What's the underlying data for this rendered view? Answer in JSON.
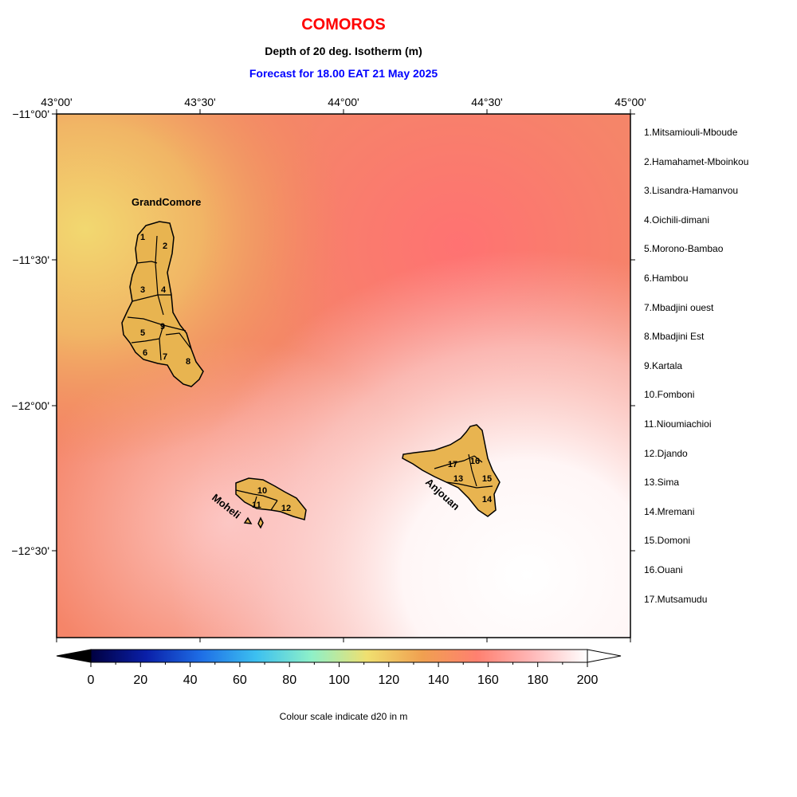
{
  "header": {
    "title": "COMOROS",
    "subtitle": "Depth of 20 deg. Isotherm (m)",
    "forecast": "Forecast for  18.00 EAT 21 May 2025"
  },
  "colors": {
    "title": "#ff0000",
    "forecast": "#0000ff",
    "land": "#e8b450",
    "coast": "#000000"
  },
  "map": {
    "lon_labels": [
      "43°00'",
      "43°30'",
      "44°00'",
      "44°30'",
      "45°00'"
    ],
    "lat_labels": [
      "−11°00'",
      "−11°30'",
      "−12°00'",
      "−12°30'"
    ],
    "islands": [
      "GrandComore",
      "Moheli",
      "Anjouan"
    ]
  },
  "districts": [
    "1.Mitsamiouli-Mboude",
    "2.Hamahamet-Mboinkou",
    "3.Lisandra-Hamanvou",
    "4.Oichili-dimani",
    "5.Morono-Bambao",
    "6.Hambou",
    "7.Mbadjini ouest",
    "8.Mbadjini Est",
    "9.Kartala",
    "10.Fomboni",
    "11.Nioumiachioi",
    "12.Djando",
    "13.Sima",
    "14.Mremani",
    "15.Domoni",
    "16.Ouani",
    "17.Mutsamudu"
  ],
  "district_numbers": [
    "1",
    "2",
    "3",
    "4",
    "5",
    "6",
    "7",
    "8",
    "9",
    "10",
    "11",
    "12",
    "13",
    "14",
    "15",
    "16",
    "17"
  ],
  "colorbar": {
    "ticks": [
      "0",
      "20",
      "40",
      "60",
      "80",
      "100",
      "120",
      "140",
      "160",
      "180",
      "200"
    ],
    "stops": [
      "#000040",
      "#0a1fa8",
      "#1e6ee6",
      "#3cc0f0",
      "#8ef0c8",
      "#f0e070",
      "#f0a050",
      "#ff8070",
      "#ffb8b8",
      "#ffffff"
    ],
    "caption": "Colour scale indicate d20 in m"
  }
}
